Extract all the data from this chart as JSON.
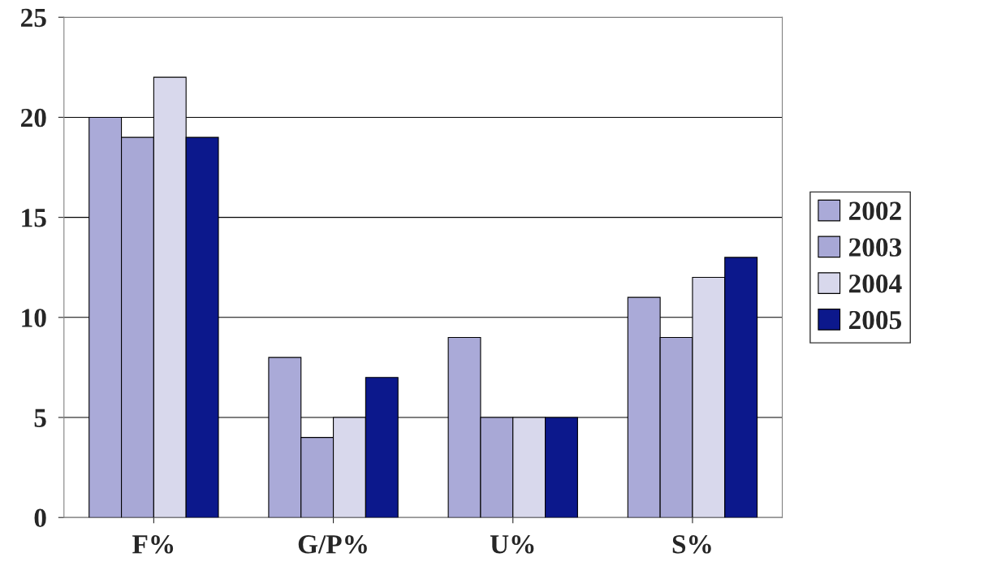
{
  "chart_data": {
    "type": "bar",
    "categories": [
      "F%",
      "G/P%",
      "U%",
      "S%"
    ],
    "series": [
      {
        "name": "2002",
        "color": "#aaaad8",
        "values": [
          20,
          8,
          9,
          11
        ]
      },
      {
        "name": "2003",
        "color": "#a8a8d6",
        "values": [
          19,
          4,
          5,
          9
        ]
      },
      {
        "name": "2004",
        "color": "#d8d8ec",
        "values": [
          22,
          5,
          5,
          12
        ]
      },
      {
        "name": "2005",
        "color": "#0c188c",
        "values": [
          19,
          7,
          5,
          13
        ]
      }
    ],
    "ylim": [
      0,
      25
    ],
    "yticks": [
      0,
      5,
      10,
      15,
      20,
      25
    ],
    "grid": "y",
    "legend": "right"
  }
}
